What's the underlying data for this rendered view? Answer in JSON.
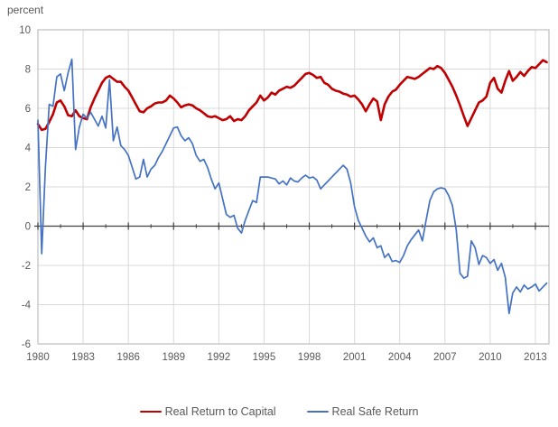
{
  "header": {
    "axis_title": "percent"
  },
  "legend": [
    {
      "label": "Real Return to Capital",
      "color": "#C00000"
    },
    {
      "label": "Real Safe Return",
      "color": "#4472C4"
    }
  ],
  "colors": {
    "grid": "#D9D9D9",
    "frame": "#BFBFBF",
    "zero_axis": "#404040",
    "tick_text": "#595959"
  },
  "chart_data": {
    "type": "line",
    "title": "",
    "ylabel": "percent",
    "xlabel": "",
    "ylim": [
      -6,
      10
    ],
    "ytick_step": 2,
    "yticks": [
      10,
      8,
      6,
      4,
      2,
      0,
      -2,
      -4,
      -6
    ],
    "xticks": [
      1980,
      1983,
      1986,
      1989,
      1992,
      1995,
      1998,
      2001,
      2004,
      2007,
      2010,
      2013
    ],
    "x_start": 1980.0,
    "x_step": 0.25,
    "x_axis_end": 2013.9,
    "grid": true,
    "legend_position": "bottom",
    "series": [
      {
        "name": "Real Return to Capital",
        "color": "#C00000",
        "stroke_width": 2.6,
        "values": [
          5.2,
          4.9,
          4.95,
          5.3,
          5.7,
          6.3,
          6.4,
          6.1,
          5.65,
          5.6,
          5.9,
          5.6,
          5.5,
          5.45,
          6.05,
          6.5,
          6.9,
          7.3,
          7.55,
          7.65,
          7.5,
          7.35,
          7.35,
          7.1,
          6.9,
          6.55,
          6.2,
          5.85,
          5.8,
          6.0,
          6.1,
          6.25,
          6.3,
          6.3,
          6.4,
          6.65,
          6.5,
          6.3,
          6.05,
          6.15,
          6.2,
          6.15,
          6.0,
          5.9,
          5.75,
          5.6,
          5.55,
          5.6,
          5.5,
          5.4,
          5.45,
          5.6,
          5.35,
          5.45,
          5.4,
          5.6,
          5.9,
          6.1,
          6.3,
          6.65,
          6.4,
          6.55,
          6.8,
          6.7,
          6.9,
          7.0,
          7.1,
          7.05,
          7.15,
          7.35,
          7.55,
          7.75,
          7.8,
          7.7,
          7.55,
          7.6,
          7.3,
          7.2,
          7.0,
          6.9,
          6.85,
          6.75,
          6.7,
          6.6,
          6.65,
          6.45,
          6.2,
          5.85,
          6.2,
          6.5,
          6.35,
          5.4,
          6.2,
          6.6,
          6.85,
          6.95,
          7.2,
          7.4,
          7.6,
          7.55,
          7.5,
          7.6,
          7.75,
          7.9,
          8.05,
          8.0,
          8.15,
          8.05,
          7.8,
          7.45,
          7.1,
          6.65,
          6.15,
          5.6,
          5.1,
          5.5,
          5.9,
          6.3,
          6.4,
          6.6,
          7.3,
          7.55,
          7.0,
          6.8,
          7.4,
          7.9,
          7.4,
          7.6,
          7.85,
          7.65,
          7.9,
          8.1,
          8.05,
          8.25,
          8.45,
          8.35
        ]
      },
      {
        "name": "Real Safe Return",
        "color": "#4472C4",
        "stroke_width": 1.7,
        "values": [
          5.4,
          -1.4,
          3.0,
          6.2,
          6.1,
          7.6,
          7.75,
          6.9,
          7.8,
          8.5,
          3.9,
          5.05,
          5.7,
          5.5,
          5.8,
          5.45,
          5.1,
          5.6,
          5.0,
          7.45,
          4.35,
          5.05,
          4.1,
          3.9,
          3.6,
          3.0,
          2.4,
          2.5,
          3.4,
          2.5,
          2.9,
          3.1,
          3.5,
          3.8,
          4.2,
          4.6,
          5.0,
          5.05,
          4.6,
          4.35,
          4.5,
          4.2,
          3.6,
          3.3,
          3.4,
          3.0,
          2.4,
          1.9,
          2.2,
          1.4,
          0.6,
          0.45,
          0.55,
          -0.1,
          -0.35,
          0.3,
          0.8,
          1.3,
          1.2,
          2.5,
          2.5,
          2.5,
          2.45,
          2.4,
          2.15,
          2.3,
          2.1,
          2.45,
          2.3,
          2.25,
          2.45,
          2.6,
          2.45,
          2.5,
          2.35,
          1.9,
          2.1,
          2.3,
          2.5,
          2.7,
          2.9,
          3.1,
          2.9,
          2.2,
          1.0,
          0.3,
          -0.1,
          -0.5,
          -0.8,
          -0.6,
          -1.1,
          -1.0,
          -1.6,
          -1.4,
          -1.8,
          -1.75,
          -1.85,
          -1.5,
          -1.0,
          -0.7,
          -0.45,
          -0.2,
          -0.75,
          0.3,
          1.3,
          1.75,
          1.9,
          1.95,
          1.9,
          1.55,
          1.05,
          -0.2,
          -2.4,
          -2.65,
          -2.55,
          -0.75,
          -1.1,
          -1.95,
          -1.5,
          -1.6,
          -1.9,
          -1.7,
          -2.25,
          -1.9,
          -2.6,
          -4.45,
          -3.4,
          -3.1,
          -3.35,
          -3.0,
          -3.2,
          -3.1,
          -2.95,
          -3.3,
          -3.1,
          -2.9
        ]
      }
    ]
  }
}
